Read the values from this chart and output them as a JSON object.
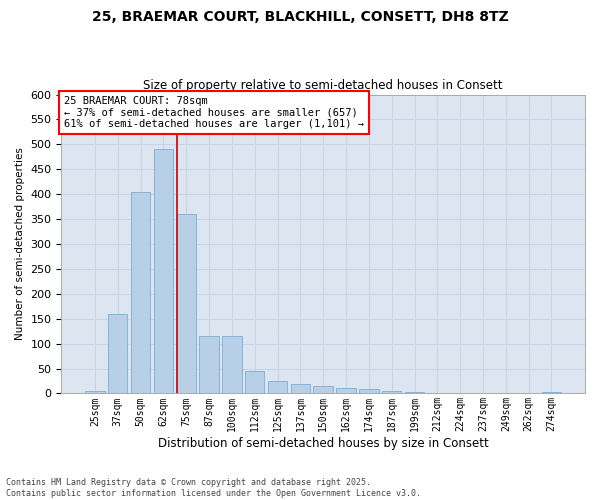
{
  "title_line1": "25, BRAEMAR COURT, BLACKHILL, CONSETT, DH8 8TZ",
  "title_line2": "Size of property relative to semi-detached houses in Consett",
  "xlabel": "Distribution of semi-detached houses by size in Consett",
  "ylabel": "Number of semi-detached properties",
  "categories": [
    "25sqm",
    "37sqm",
    "50sqm",
    "62sqm",
    "75sqm",
    "87sqm",
    "100sqm",
    "112sqm",
    "125sqm",
    "137sqm",
    "150sqm",
    "162sqm",
    "174sqm",
    "187sqm",
    "199sqm",
    "212sqm",
    "224sqm",
    "237sqm",
    "249sqm",
    "262sqm",
    "274sqm"
  ],
  "values": [
    5,
    160,
    405,
    490,
    360,
    115,
    115,
    45,
    25,
    18,
    14,
    10,
    8,
    5,
    2,
    1,
    1,
    1,
    1,
    0,
    2
  ],
  "bar_color": "#b8cfe8",
  "bar_edge_color": "#7aadd4",
  "highlight_color": "#cc0000",
  "property_label": "25 BRAEMAR COURT: 78sqm",
  "pct_smaller": 37,
  "count_smaller": 657,
  "pct_larger": 61,
  "count_larger": 1101,
  "ylim": [
    0,
    600
  ],
  "yticks": [
    0,
    50,
    100,
    150,
    200,
    250,
    300,
    350,
    400,
    450,
    500,
    550,
    600
  ],
  "grid_color": "#c8d4e8",
  "bg_color": "#dde5f0",
  "footnote1": "Contains HM Land Registry data © Crown copyright and database right 2025.",
  "footnote2": "Contains public sector information licensed under the Open Government Licence v3.0."
}
